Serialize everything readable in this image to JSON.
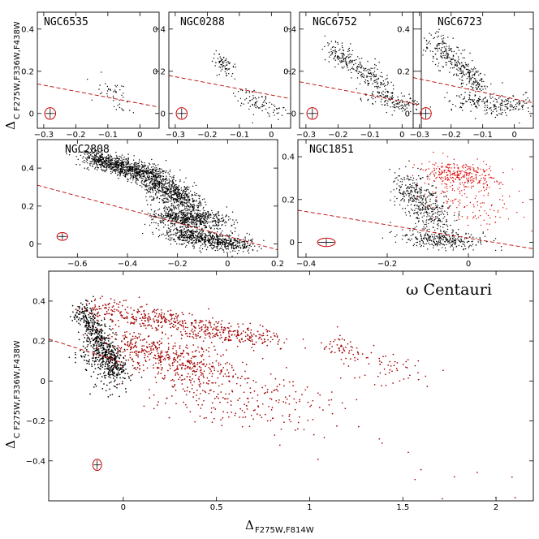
{
  "figure": {
    "ylabel_main": "Δ",
    "ylabel_sub": "C F275W,F336W,F438W",
    "ylabel_sub_top": "C F275W,F336W,F438W",
    "xlabel_main": "Δ",
    "xlabel_sub": "F275W,F814W"
  },
  "colors": {
    "primary": "#000000",
    "second": "#e00000",
    "second_dark": "#a00000",
    "line": "#c00000",
    "ellipse": "#cc0000"
  },
  "chart_data": [
    {
      "type": "scatter",
      "title": "NGC6535",
      "xlim": [
        -0.32,
        0.06
      ],
      "ylim": [
        -0.07,
        0.48
      ],
      "xticks": [
        -0.3,
        -0.2,
        -0.1,
        0
      ],
      "xticklabels": [
        "−0.3",
        "−0.2",
        "−0.1",
        "0"
      ],
      "yticks": [
        0,
        0.2,
        0.4
      ],
      "yticklabels": [
        "0",
        "0.2",
        "0.4"
      ],
      "dashed_line": [
        [
          -0.32,
          0.14
        ],
        [
          0.06,
          0.03
        ]
      ],
      "error_ellipse": {
        "x": -0.28,
        "y": 0.0,
        "ex": 0.012,
        "ey": 0.02
      },
      "series": [
        {
          "color": "#000000",
          "clusters": [
            {
              "n": 45,
              "x0": -0.11,
              "y0": 0.14,
              "x1": -0.04,
              "y1": 0.03,
              "sx": 0.02,
              "sy": 0.03
            }
          ]
        }
      ]
    },
    {
      "type": "scatter",
      "title": "NGC0288",
      "xlim": [
        -0.32,
        0.06
      ],
      "ylim": [
        -0.07,
        0.48
      ],
      "xticks": [
        -0.3,
        -0.2,
        -0.1,
        0
      ],
      "xticklabels": [
        "−0.3",
        "−0.2",
        "−0.1",
        "0"
      ],
      "yticks": [
        0,
        0.2,
        0.4
      ],
      "yticklabels": [
        "0",
        "0.2",
        "0.4"
      ],
      "dashed_line": [
        [
          -0.32,
          0.18
        ],
        [
          0.06,
          0.07
        ]
      ],
      "error_ellipse": {
        "x": -0.28,
        "y": 0.0,
        "ex": 0.012,
        "ey": 0.02
      },
      "series": [
        {
          "color": "#000000",
          "clusters": [
            {
              "n": 70,
              "x0": -0.17,
              "y0": 0.27,
              "x1": -0.13,
              "y1": 0.2,
              "sx": 0.012,
              "sy": 0.02
            },
            {
              "n": 90,
              "x0": -0.1,
              "y0": 0.1,
              "x1": 0.02,
              "y1": 0.0,
              "sx": 0.02,
              "sy": 0.02
            }
          ]
        }
      ]
    },
    {
      "type": "scatter",
      "title": "NGC6752",
      "xlim": [
        -0.32,
        0.06
      ],
      "ylim": [
        -0.07,
        0.48
      ],
      "xticks": [
        -0.3,
        -0.2,
        -0.1,
        0
      ],
      "xticklabels": [
        "−0.3",
        "−0.2",
        "−0.1",
        "0"
      ],
      "yticks": [
        0,
        0.2,
        0.4
      ],
      "yticklabels": [
        "0",
        "0.2",
        "0.4"
      ],
      "dashed_line": [
        [
          -0.32,
          0.15
        ],
        [
          0.06,
          0.04
        ]
      ],
      "error_ellipse": {
        "x": -0.28,
        "y": 0.0,
        "ex": 0.012,
        "ey": 0.02
      },
      "series": [
        {
          "color": "#000000",
          "clusters": [
            {
              "n": 260,
              "x0": -0.23,
              "y0": 0.32,
              "x1": -0.05,
              "y1": 0.12,
              "sx": 0.02,
              "sy": 0.025
            },
            {
              "n": 140,
              "x0": -0.08,
              "y0": 0.1,
              "x1": 0.02,
              "y1": 0.02,
              "sx": 0.025,
              "sy": 0.02
            }
          ]
        }
      ]
    },
    {
      "type": "scatter",
      "title": "NGC6723",
      "xlim": [
        -0.32,
        0.06
      ],
      "ylim": [
        -0.07,
        0.48
      ],
      "xticks": [
        -0.3,
        -0.2,
        -0.1,
        0
      ],
      "xticklabels": [
        "−0.3",
        "−0.2",
        "−0.1",
        "0"
      ],
      "yticks": [
        0,
        0.2,
        0.4
      ],
      "yticklabels": [
        "0",
        "0.2",
        "0.4"
      ],
      "dashed_line": [
        [
          -0.32,
          0.17
        ],
        [
          0.06,
          0.05
        ]
      ],
      "error_ellipse": {
        "x": -0.28,
        "y": 0.0,
        "ex": 0.012,
        "ey": 0.02
      },
      "series": [
        {
          "color": "#000000",
          "clusters": [
            {
              "n": 320,
              "x0": -0.26,
              "y0": 0.35,
              "x1": -0.1,
              "y1": 0.12,
              "sx": 0.02,
              "sy": 0.03
            },
            {
              "n": 220,
              "x0": -0.17,
              "y0": 0.06,
              "x1": 0.03,
              "y1": 0.03,
              "sx": 0.04,
              "sy": 0.025
            }
          ]
        }
      ]
    },
    {
      "type": "scatter",
      "title": "NGC2808",
      "xlim": [
        -0.76,
        0.2
      ],
      "ylim": [
        -0.07,
        0.55
      ],
      "xticks": [
        -0.6,
        -0.4,
        -0.2,
        0,
        0.2
      ],
      "xticklabels": [
        "−0.6",
        "−0.4",
        "−0.2",
        "0",
        "0.2"
      ],
      "yticks": [
        0,
        0.2,
        0.4
      ],
      "yticklabels": [
        "0",
        "0.2",
        "0.4"
      ],
      "dashed_line": [
        [
          -0.76,
          0.31
        ],
        [
          0.2,
          -0.03
        ]
      ],
      "error_ellipse": {
        "x": -0.66,
        "y": 0.04,
        "ex": 0.015,
        "ey": 0.012
      },
      "series": [
        {
          "color": "#000000",
          "clusters": [
            {
              "n": 900,
              "x0": -0.55,
              "y0": 0.46,
              "x1": -0.3,
              "y1": 0.36,
              "sx": 0.04,
              "sy": 0.02
            },
            {
              "n": 700,
              "x0": -0.3,
              "y0": 0.34,
              "x1": -0.15,
              "y1": 0.2,
              "sx": 0.04,
              "sy": 0.03
            },
            {
              "n": 600,
              "x0": -0.25,
              "y0": 0.15,
              "x1": -0.05,
              "y1": 0.12,
              "sx": 0.05,
              "sy": 0.025
            },
            {
              "n": 700,
              "x0": -0.2,
              "y0": 0.06,
              "x1": 0.05,
              "y1": -0.01,
              "sx": 0.05,
              "sy": 0.02
            }
          ]
        }
      ]
    },
    {
      "type": "scatter",
      "title": "NGC1851",
      "xlim": [
        -0.42,
        0.16
      ],
      "ylim": [
        -0.07,
        0.48
      ],
      "xticks": [
        -0.4,
        -0.2,
        0
      ],
      "xticklabels": [
        "−0.4",
        "−0.2",
        "0"
      ],
      "yticks": [
        0,
        0.2,
        0.4
      ],
      "yticklabels": [
        "0",
        "0.2",
        "0.4"
      ],
      "dashed_line": [
        [
          -0.42,
          0.15
        ],
        [
          0.16,
          -0.03
        ]
      ],
      "error_ellipse": {
        "x": -0.35,
        "y": 0.0,
        "ex": 0.018,
        "ey": 0.012
      },
      "series": [
        {
          "color": "#000000",
          "clusters": [
            {
              "n": 420,
              "x0": -0.15,
              "y0": 0.28,
              "x1": -0.07,
              "y1": 0.08,
              "sx": 0.025,
              "sy": 0.04
            },
            {
              "n": 300,
              "x0": -0.12,
              "y0": 0.03,
              "x1": 0.0,
              "y1": 0.0,
              "sx": 0.04,
              "sy": 0.02
            }
          ]
        },
        {
          "color": "#e00000",
          "clusters": [
            {
              "n": 300,
              "x0": -0.08,
              "y0": 0.33,
              "x1": 0.04,
              "y1": 0.3,
              "sx": 0.035,
              "sy": 0.03
            },
            {
              "n": 120,
              "x0": -0.05,
              "y0": 0.22,
              "x1": 0.08,
              "y1": 0.16,
              "sx": 0.04,
              "sy": 0.05
            }
          ]
        }
      ]
    },
    {
      "type": "scatter",
      "title": "ω Centauri",
      "xlim": [
        -0.4,
        2.2
      ],
      "ylim": [
        -0.6,
        0.55
      ],
      "xticks": [
        0,
        0.5,
        1,
        1.5,
        2
      ],
      "xticklabels": [
        "0",
        "0.5",
        "1",
        "1.5",
        "2"
      ],
      "yticks": [
        -0.4,
        -0.2,
        0,
        0.2,
        0.4
      ],
      "yticklabels": [
        "−0.4",
        "−0.2",
        "0",
        "0.2",
        "0.4"
      ],
      "dashed_line": [
        [
          -0.4,
          0.21
        ],
        [
          0.0,
          0.09
        ]
      ],
      "error_ellipse": {
        "x": -0.14,
        "y": -0.42,
        "ex": 0.015,
        "ey": 0.02
      },
      "series": [
        {
          "color": "#000000",
          "clusters": [
            {
              "n": 500,
              "x0": -0.22,
              "y0": 0.36,
              "x1": -0.02,
              "y1": 0.04,
              "sx": 0.03,
              "sy": 0.03
            },
            {
              "n": 200,
              "x0": -0.2,
              "y0": 0.2,
              "x1": -0.02,
              "y1": 0.0,
              "sx": 0.05,
              "sy": 0.05
            }
          ]
        },
        {
          "color": "#a00000",
          "clusters": [
            {
              "n": 520,
              "x0": -0.15,
              "y0": 0.37,
              "x1": 0.8,
              "y1": 0.2,
              "sx": 0.06,
              "sy": 0.03
            },
            {
              "n": 450,
              "x0": -0.05,
              "y0": 0.2,
              "x1": 0.5,
              "y1": 0.05,
              "sx": 0.08,
              "sy": 0.05
            },
            {
              "n": 260,
              "x0": 0.2,
              "y0": 0.0,
              "x1": 1.0,
              "y1": -0.15,
              "sx": 0.12,
              "sy": 0.08
            },
            {
              "n": 60,
              "x0": 1.1,
              "y0": 0.2,
              "x1": 1.3,
              "y1": 0.12,
              "sx": 0.06,
              "sy": 0.03
            },
            {
              "n": 50,
              "x0": 1.3,
              "y0": 0.1,
              "x1": 1.6,
              "y1": 0.0,
              "sx": 0.1,
              "sy": 0.04
            },
            {
              "n": 20,
              "x0": 1.0,
              "y0": -0.2,
              "x1": 2.1,
              "y1": -0.55,
              "sx": 0.15,
              "sy": 0.06
            }
          ]
        }
      ]
    }
  ]
}
